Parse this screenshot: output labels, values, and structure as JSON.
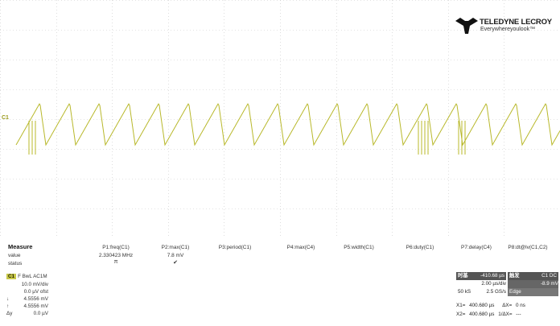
{
  "brand": {
    "name": "TELEDYNE LECROY",
    "tagline": "Everywhereyoulook™"
  },
  "channel_marker": "C1",
  "measure": {
    "title": "Measure",
    "row_labels": [
      "value",
      "status"
    ],
    "params": [
      {
        "label": "P1:freq(C1)",
        "value": "2.330423 MHz",
        "status": "π"
      },
      {
        "label": "P2:max(C1)",
        "value": "7.8 mV",
        "status": "✔"
      },
      {
        "label": "P3:period(C1)",
        "value": "",
        "status": ""
      },
      {
        "label": "P4:max(C4)",
        "value": "",
        "status": ""
      },
      {
        "label": "P5:width(C1)",
        "value": "",
        "status": ""
      },
      {
        "label": "P6:duty(C1)",
        "value": "",
        "status": ""
      },
      {
        "label": "P7:delay(C4)",
        "value": "",
        "status": ""
      },
      {
        "label": "P8:dt@lv(C1,C2)",
        "value": "",
        "status": ""
      }
    ]
  },
  "channel": {
    "tag": "C1",
    "mode": "F  BwL AC1M",
    "vdiv": "10.0 mV/div",
    "offset": "0.0 µV ofst",
    "cursor1": "4.5556 mV",
    "cursor2": "4.5556 mV",
    "delta_label": "Δy",
    "delta": "0.0 µV"
  },
  "timebase": {
    "label": "时基",
    "delay": "-410.68 µs",
    "tdiv": "2.00 µs/div",
    "samples": "50 kS",
    "rate": "2.5 GS/s",
    "trigger_label": "触发",
    "trigger_source": "C1 DC",
    "trigger_level": "-8.9 mV",
    "trigger_type": "Edge"
  },
  "cursors": {
    "x1_label": "X1=",
    "x1": "400.680 µs",
    "dx_label": "ΔX=",
    "dx": "0 ns",
    "x2_label": "X2=",
    "x2": "400.680 µs",
    "inv_dx_label": "1/ΔX=",
    "inv_dx": "---"
  },
  "colors": {
    "trace": "#b8b82a",
    "channel_tag": "#c9c94a",
    "grid": "#c8c8c8"
  }
}
